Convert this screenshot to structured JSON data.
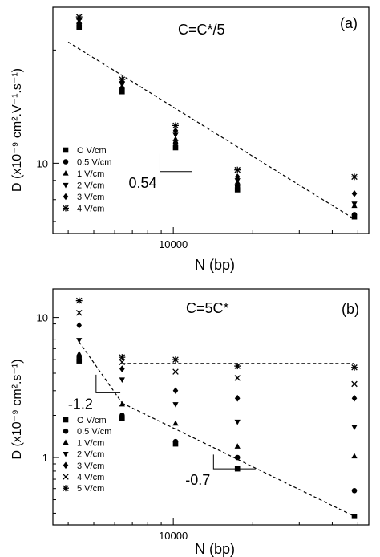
{
  "chart_data": [
    {
      "type": "scatter",
      "panel_label": "(a)",
      "condition": "C=C*/5",
      "xlabel": "N (bp)",
      "ylabel": "D (x10⁻⁹ cm².V⁻¹.s⁻¹)",
      "x_scale": "log",
      "y_scale": "log",
      "xlim": [
        3500,
        55000
      ],
      "ylim": [
        6.5,
        26
      ],
      "x_ticks": [
        10000
      ],
      "x_tick_labels": [
        "10000"
      ],
      "y_ticks": [
        10
      ],
      "y_tick_labels": [
        "10"
      ],
      "legend_position": "bottom-left",
      "series": [
        {
          "name": "O V/cm",
          "marker": "square",
          "x": [
            4400,
            6400,
            10200,
            17500,
            48500
          ],
          "y": [
            23,
            15.5,
            11,
            8.5,
            7.2
          ]
        },
        {
          "name": "0.5 V/cm",
          "marker": "circle",
          "x": [
            4400,
            6400,
            10200,
            17500,
            48500
          ],
          "y": [
            23.5,
            15.8,
            11.3,
            8.7,
            7.3
          ]
        },
        {
          "name": "1 V/cm",
          "marker": "triangle-up",
          "x": [
            4400,
            6400,
            10200,
            17500,
            48500
          ],
          "y": [
            23.8,
            16,
            11.6,
            8.9,
            7.7
          ]
        },
        {
          "name": "2 V/cm",
          "marker": "triangle-down",
          "x": [
            4400,
            6400,
            10200,
            17500,
            48500
          ],
          "y": [
            24,
            16.2,
            11.9,
            9.0,
            7.8
          ]
        },
        {
          "name": "3 V/cm",
          "marker": "diamond",
          "x": [
            4400,
            6400,
            10200,
            17500,
            48500
          ],
          "y": [
            24.2,
            16.4,
            12.2,
            9.2,
            8.3
          ]
        },
        {
          "name": "4 V/cm",
          "marker": "star",
          "x": [
            4400,
            6400,
            10200,
            17500,
            48500
          ],
          "y": [
            24.5,
            16.7,
            12.6,
            9.6,
            9.2
          ]
        }
      ],
      "fit_lines": [
        {
          "style": "dashed",
          "x": [
            4000,
            48500
          ],
          "y": [
            21,
            7.1
          ]
        }
      ],
      "annotations": [
        {
          "text": "0.54",
          "kind": "slope-triangle",
          "x": [
            8900,
            11800
          ],
          "y": [
            10.6,
            9.5
          ]
        }
      ]
    },
    {
      "type": "scatter",
      "panel_label": "(b)",
      "condition": "C=5C*",
      "xlabel": "N (bp)",
      "ylabel": "D (x10⁻⁹ cm².s⁻¹)",
      "x_scale": "log",
      "y_scale": "log",
      "xlim": [
        3500,
        55000
      ],
      "ylim": [
        0.33,
        16
      ],
      "x_ticks": [
        10000
      ],
      "x_tick_labels": [
        "10000"
      ],
      "y_ticks": [
        1,
        10
      ],
      "y_tick_labels": [
        "1",
        "10"
      ],
      "legend_position": "bottom-left",
      "series": [
        {
          "name": "O V/cm",
          "marker": "square",
          "x": [
            4400,
            6400,
            10200,
            17500,
            48500
          ],
          "y": [
            4.9,
            1.9,
            1.25,
            0.83,
            0.38
          ]
        },
        {
          "name": "0.5 V/cm",
          "marker": "circle",
          "x": [
            4400,
            6400,
            10200,
            17500,
            48500
          ],
          "y": [
            5.2,
            2.0,
            1.3,
            1.0,
            0.58
          ]
        },
        {
          "name": "1 V/cm",
          "marker": "triangle-up",
          "x": [
            4400,
            6400,
            10200,
            17500,
            48500
          ],
          "y": [
            5.5,
            2.4,
            1.75,
            1.2,
            1.02
          ]
        },
        {
          "name": "2 V/cm",
          "marker": "triangle-down",
          "x": [
            4400,
            6400,
            10200,
            17500,
            48500
          ],
          "y": [
            6.9,
            3.6,
            2.4,
            1.8,
            1.65
          ]
        },
        {
          "name": "3 V/cm",
          "marker": "diamond",
          "x": [
            4400,
            6400,
            10200,
            17500,
            48500
          ],
          "y": [
            8.8,
            4.3,
            3.0,
            2.65,
            2.65
          ]
        },
        {
          "name": "4 V/cm",
          "marker": "cross",
          "x": [
            4400,
            6400,
            10200,
            17500,
            48500
          ],
          "y": [
            10.8,
            4.8,
            4.1,
            3.7,
            3.35
          ]
        },
        {
          "name": "5 V/cm",
          "marker": "star",
          "x": [
            4400,
            6400,
            10200,
            17500,
            48500
          ],
          "y": [
            13.2,
            5.2,
            5.0,
            4.5,
            4.4
          ]
        }
      ],
      "fit_lines": [
        {
          "style": "dashed",
          "x": [
            4400,
            6400
          ],
          "y": [
            6.7,
            2.45
          ]
        },
        {
          "style": "dashed",
          "x": [
            6400,
            48500
          ],
          "y": [
            2.45,
            0.38
          ]
        },
        {
          "style": "dotted",
          "x": [
            6400,
            48500
          ],
          "y": [
            4.7,
            4.7
          ]
        }
      ],
      "annotations": [
        {
          "text": "-1.2",
          "kind": "slope-triangle",
          "x": [
            5100,
            6300
          ],
          "y": [
            3.9,
            2.9
          ]
        },
        {
          "text": "-0.7",
          "kind": "slope-triangle",
          "x": [
            14200,
            20500
          ],
          "y": [
            1.05,
            0.83
          ]
        }
      ]
    }
  ]
}
